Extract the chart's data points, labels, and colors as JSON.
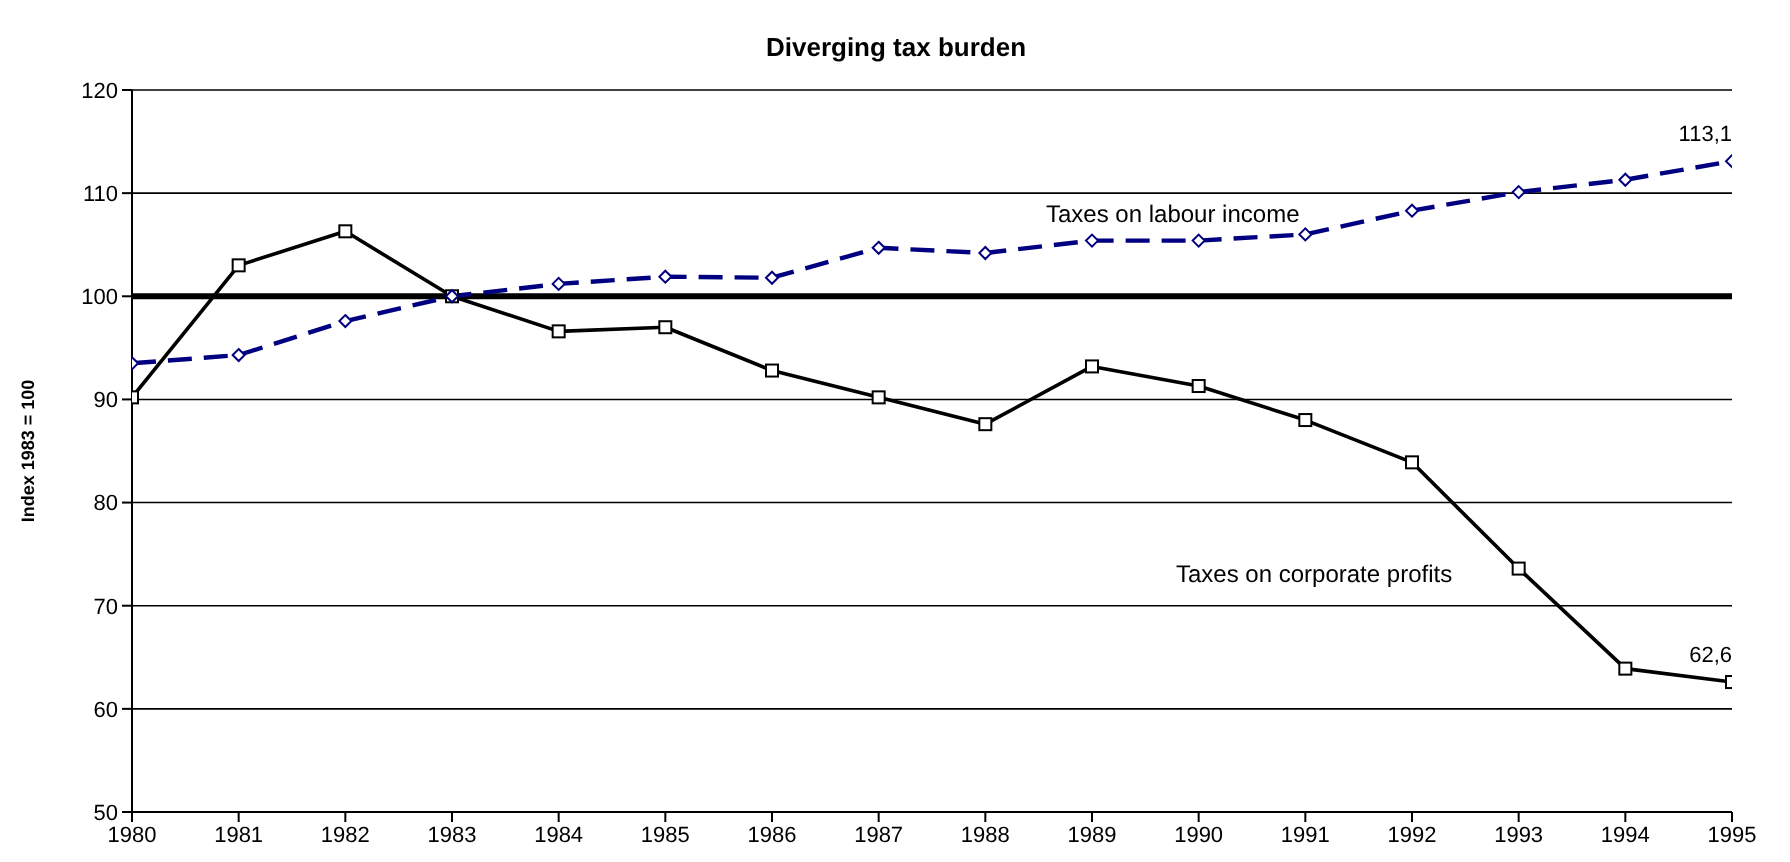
{
  "chart_data": {
    "type": "line",
    "title": "Diverging tax burden",
    "ylabel": "Index 1983 = 100",
    "x": [
      1980,
      1981,
      1982,
      1983,
      1984,
      1985,
      1986,
      1987,
      1988,
      1989,
      1990,
      1991,
      1992,
      1993,
      1994,
      1995
    ],
    "series": [
      {
        "name": "Taxes on labour income",
        "color": "#000080",
        "marker": "diamond",
        "line_style": "dashed",
        "values": [
          93.5,
          94.3,
          97.6,
          100,
          101.2,
          101.9,
          101.8,
          104.7,
          104.2,
          105.4,
          105.4,
          106.0,
          108.3,
          110.1,
          111.3,
          113.1
        ],
        "value_labels": [
          null,
          null,
          null,
          null,
          null,
          null,
          null,
          null,
          null,
          null,
          null,
          null,
          null,
          null,
          null,
          "113,1"
        ]
      },
      {
        "name": "Taxes on corporate profits",
        "color": "#000000",
        "marker": "square",
        "line_style": "solid",
        "values": [
          90.2,
          103.0,
          106.3,
          100,
          96.6,
          97.0,
          92.8,
          90.2,
          87.6,
          93.2,
          91.3,
          88.0,
          83.9,
          73.6,
          63.9,
          62.6
        ],
        "value_labels": [
          null,
          null,
          null,
          null,
          null,
          null,
          null,
          null,
          null,
          null,
          null,
          null,
          null,
          null,
          null,
          "62,6"
        ]
      }
    ],
    "xlim": [
      1980,
      1995
    ],
    "xticks": [
      1980,
      1981,
      1982,
      1983,
      1984,
      1985,
      1986,
      1987,
      1988,
      1989,
      1990,
      1991,
      1992,
      1993,
      1994,
      1995
    ],
    "ylim": [
      50,
      120
    ],
    "yticks": [
      50,
      60,
      70,
      80,
      90,
      100,
      110,
      120
    ],
    "grid": "y",
    "ref_lines": [
      {
        "axis": "y",
        "value": 100,
        "color": "#000000"
      }
    ]
  }
}
